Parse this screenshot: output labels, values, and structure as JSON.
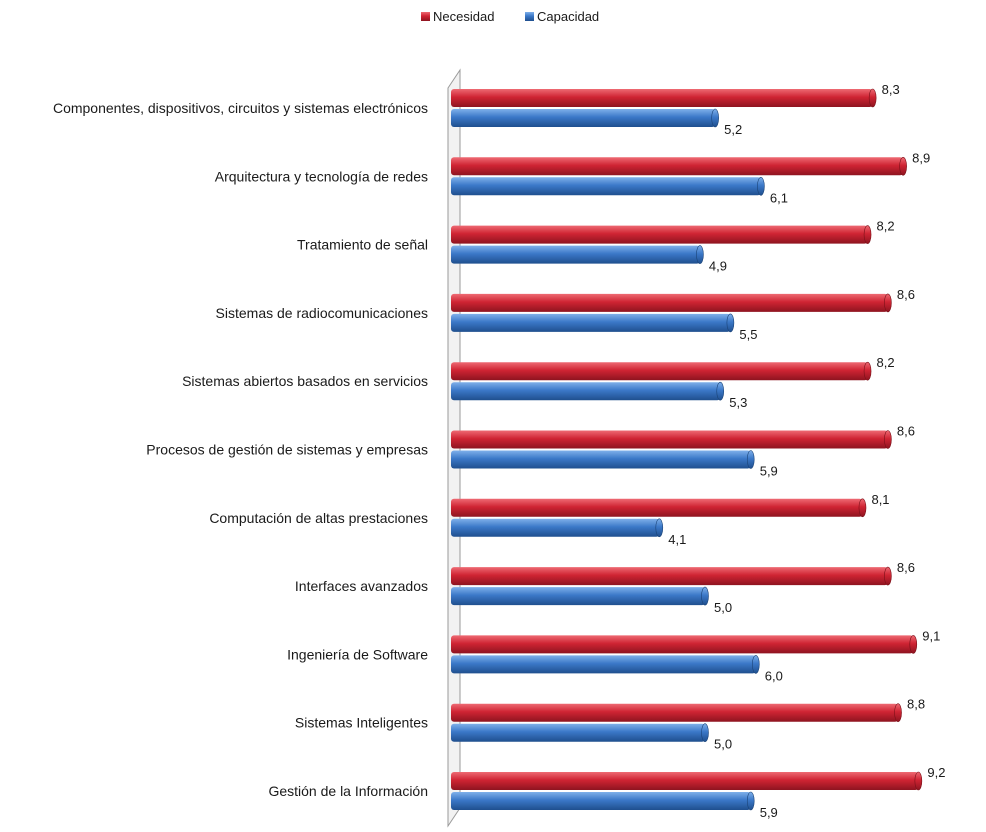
{
  "colors": {
    "necesidad": "#c8202f",
    "capacidad": "#3a75c4"
  },
  "chart_data": {
    "type": "bar",
    "orientation": "horizontal",
    "categories": [
      "Componentes, dispositivos, circuitos y sistemas electrónicos",
      "Arquitectura y tecnología de redes",
      "Tratamiento de señal",
      "Sistemas de radiocomunicaciones",
      "Sistemas abiertos basados en servicios",
      "Procesos de gestión de sistemas y empresas",
      "Computación de altas prestaciones",
      "Interfaces avanzados",
      "Ingeniería de Software",
      "Sistemas Inteligentes",
      "Gestión de la Información"
    ],
    "series": [
      {
        "name": "Necesidad",
        "values": [
          8.3,
          8.9,
          8.2,
          8.6,
          8.2,
          8.6,
          8.1,
          8.6,
          9.1,
          8.8,
          9.2
        ],
        "labels": [
          "8,3",
          "8,9",
          "8,2",
          "8,6",
          "8,2",
          "8,6",
          "8,1",
          "8,6",
          "9,1",
          "8,8",
          "9,2"
        ]
      },
      {
        "name": "Capacidad",
        "values": [
          5.2,
          6.1,
          4.9,
          5.5,
          5.3,
          5.9,
          4.1,
          5.0,
          6.0,
          5.0,
          5.9
        ],
        "labels": [
          "5,2",
          "6,1",
          "4,9",
          "5,5",
          "5,3",
          "5,9",
          "4,1",
          "5,0",
          "6,0",
          "5,0",
          "5,9"
        ]
      }
    ],
    "legend": {
      "position": "top-center",
      "items": [
        "Necesidad",
        "Capacidad"
      ]
    },
    "xlim": [
      0,
      10
    ],
    "grid": false,
    "data_labels": true
  }
}
